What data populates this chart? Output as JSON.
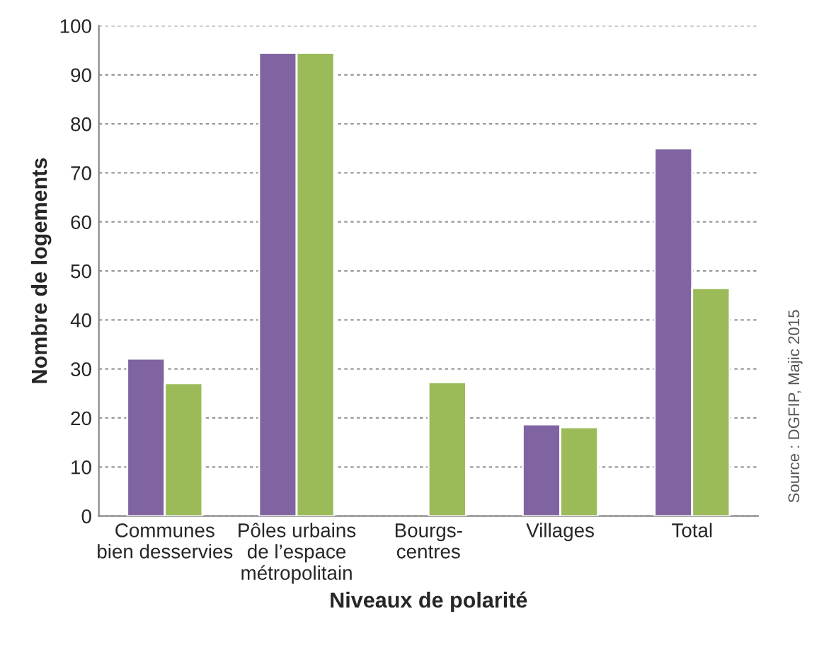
{
  "chart_data": {
    "type": "bar",
    "xlabel": "Niveaux de polarité",
    "ylabel": "Nombre de logements",
    "categories": [
      "Communes\nbien desservies",
      "Pôles urbains\nde l’espace\nmétropolitain",
      "Bourgs-\ncentres",
      "Villages",
      "Total"
    ],
    "series": [
      {
        "color": "#8064a2",
        "values": [
          32.1,
          94.5,
          null,
          18.7,
          75.0
        ]
      },
      {
        "color": "#9bbb59",
        "values": [
          27.1,
          94.5,
          27.3,
          18.1,
          46.5
        ]
      }
    ],
    "ylim": [
      0,
      100
    ],
    "yticks": [
      0,
      10,
      20,
      30,
      40,
      50,
      60,
      70,
      80,
      90,
      100
    ],
    "grid": "y",
    "legend": false,
    "annotations": [
      "Source : DGFIP, Majic 2015"
    ]
  }
}
